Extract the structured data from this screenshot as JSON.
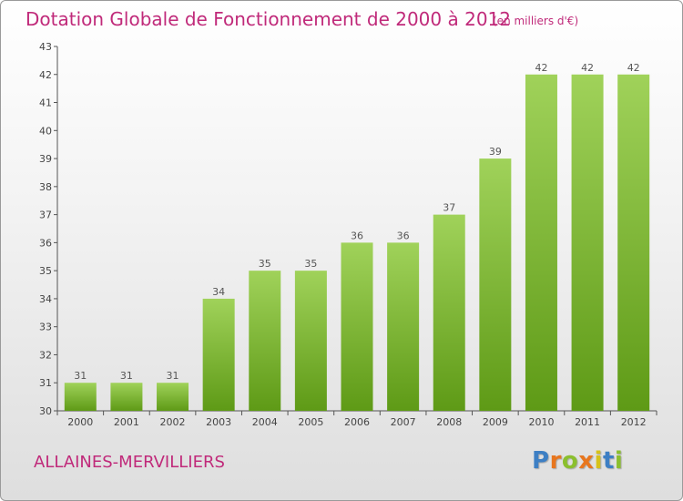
{
  "header": {
    "title": "Dotation Globale de Fonctionnement de 2000 à 2012",
    "unit": "(en milliers d'€)"
  },
  "footer": {
    "commune": "ALLAINES-MERVILLIERS",
    "logo": "Proxiti"
  },
  "colors": {
    "title": "#c02a7a",
    "bar_top": "#a0d25a",
    "bar_bottom": "#5e9a16",
    "label": "#555555"
  },
  "chart_data": {
    "type": "bar",
    "title": "Dotation Globale de Fonctionnement de 2000 à 2012",
    "subtitle": "(en milliers d'€)",
    "xlabel": "",
    "ylabel": "",
    "categories": [
      "2000",
      "2001",
      "2002",
      "2003",
      "2004",
      "2005",
      "2006",
      "2007",
      "2008",
      "2009",
      "2010",
      "2011",
      "2012"
    ],
    "values": [
      31,
      31,
      31,
      34,
      35,
      35,
      36,
      36,
      37,
      39,
      42,
      42,
      42
    ],
    "ylim": [
      30,
      43
    ],
    "yticks": [
      30,
      31,
      32,
      33,
      34,
      35,
      36,
      37,
      38,
      39,
      40,
      41,
      42,
      43
    ],
    "grid": false,
    "legend": "none"
  }
}
